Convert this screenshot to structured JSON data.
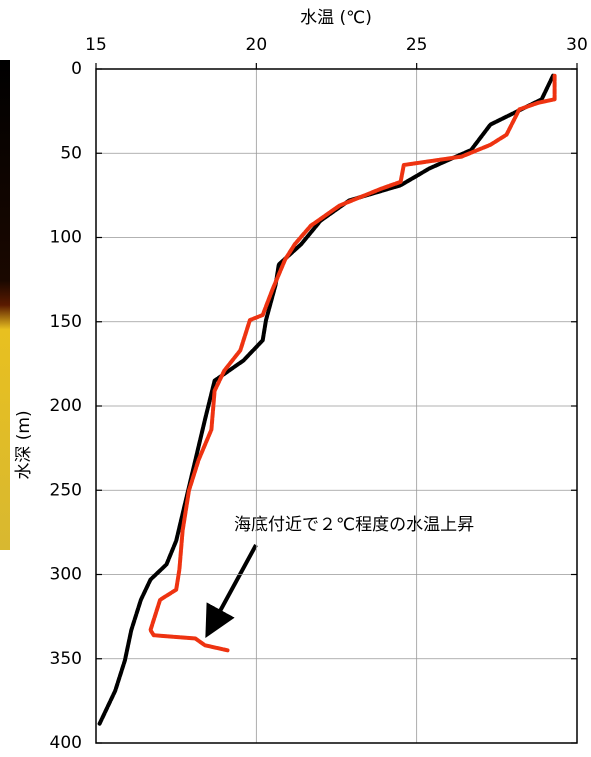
{
  "chart_data": {
    "type": "line",
    "x_label": "水温 (℃)",
    "y_label": "水深 (m)",
    "annotation": "海底付近で２℃程度の水温上昇",
    "xlim": [
      15,
      30
    ],
    "xticks": [
      15,
      20,
      25,
      30
    ],
    "ylim": [
      0,
      400
    ],
    "yticks": [
      0,
      50,
      100,
      150,
      200,
      250,
      300,
      350,
      400
    ],
    "y_inverted": true,
    "grid": true,
    "series": [
      {
        "color": "#000000",
        "x": [
          29.25,
          28.9,
          27.3,
          26.7,
          25.4,
          24.5,
          22.9,
          22.0,
          21.4,
          20.7,
          20.6,
          20.3,
          20.2,
          19.6,
          18.7,
          18.4,
          18.1,
          17.8,
          17.5,
          17.2,
          16.7,
          16.4,
          16.1,
          15.9,
          15.6,
          15.1
        ],
        "values": [
          4,
          18,
          33,
          48,
          59,
          69,
          78,
          90,
          104,
          116,
          128,
          149,
          161,
          173,
          185,
          208,
          232,
          256,
          280,
          294,
          303,
          315,
          333,
          351,
          369,
          389
        ]
      },
      {
        "color": "#ee3311",
        "x": [
          29.3,
          29.3,
          28.8,
          28.2,
          27.8,
          27.3,
          26.4,
          24.6,
          24.5,
          23.9,
          22.6,
          21.7,
          21.2,
          20.9,
          20.5,
          20.2,
          19.8,
          19.5,
          19.0,
          18.7,
          18.6,
          18.2,
          17.9,
          17.7,
          17.6,
          17.5,
          17.0,
          16.7,
          16.8,
          18.1,
          18.4,
          19.1
        ],
        "values": [
          4,
          18,
          20,
          24,
          39,
          45,
          52,
          57,
          67,
          71,
          81,
          93,
          104,
          113,
          131,
          146,
          149,
          167,
          179,
          191,
          214,
          232,
          250,
          274,
          297,
          309,
          315,
          333,
          336,
          338,
          342,
          345
        ]
      }
    ]
  }
}
